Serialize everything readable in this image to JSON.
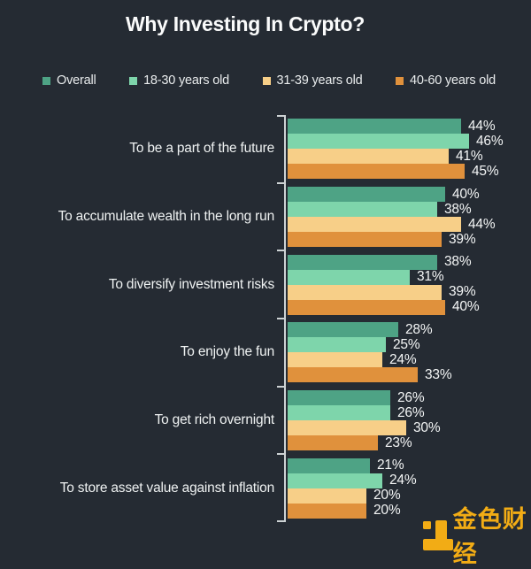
{
  "page": {
    "background": "#252B33"
  },
  "title": "Why Investing In Crypto?",
  "axis": {
    "color": "#CDD2D4",
    "tick_count": 7
  },
  "chart_data": {
    "type": "bar",
    "orientation": "horizontal",
    "title": "Why Investing In Crypto?",
    "categories": [
      "To be a part of the future",
      "To accumulate wealth in the long run",
      "To diversify investment risks",
      "To enjoy the fun",
      "To get rich overnight",
      "To store asset value against inflation"
    ],
    "series": [
      {
        "name": "Overall",
        "color": "#4EA385",
        "values": [
          44,
          40,
          38,
          28,
          26,
          21
        ]
      },
      {
        "name": "18-30 years old",
        "color": "#7ED5AB",
        "values": [
          46,
          38,
          31,
          25,
          26,
          24
        ]
      },
      {
        "name": "31-39 years old",
        "color": "#F7CF88",
        "values": [
          41,
          44,
          39,
          24,
          30,
          20
        ]
      },
      {
        "name": "40-60 years old",
        "color": "#E0913C",
        "values": [
          45,
          39,
          40,
          33,
          23,
          20
        ]
      }
    ],
    "value_suffix": "%",
    "xlim": [
      0,
      50
    ],
    "data_labels": true,
    "legend_position": "top",
    "grid": false
  },
  "watermark": {
    "text": "金色财经",
    "icon": "jinse-logo",
    "color": "#F2AC15"
  }
}
